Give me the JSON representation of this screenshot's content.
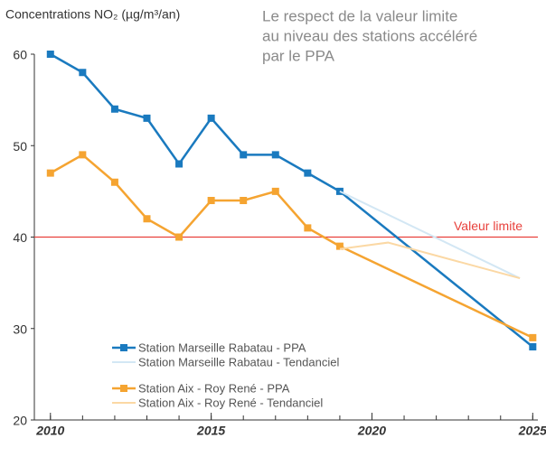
{
  "chart_data": {
    "type": "line",
    "ylabel": "Concentrations NO₂ (µg/m³/an)",
    "annotation": [
      "Le respect de la valeur limite",
      "au niveau des stations accéléré",
      "par le PPA"
    ],
    "xlim": [
      2009.5,
      2025.3
    ],
    "xticks": [
      2010,
      2015,
      2020,
      2025
    ],
    "x_minor_ticks": [
      2010,
      2011,
      2012,
      2013,
      2014,
      2015,
      2016,
      2017,
      2018,
      2019,
      2020,
      2021,
      2022,
      2023,
      2024,
      2025
    ],
    "ylim": [
      20,
      60
    ],
    "yticks": [
      20,
      30,
      40,
      50,
      60
    ],
    "reference_line": {
      "value": 40,
      "label": "Valeur limite",
      "color": "#e8413c"
    },
    "series": [
      {
        "name": "Station Marseille Rabatau - PPA",
        "color": "#1a7abf",
        "markers": true,
        "x": [
          2010,
          2011,
          2012,
          2013,
          2014,
          2015,
          2016,
          2017,
          2018,
          2019,
          2025
        ],
        "values": [
          60,
          58,
          54,
          53,
          48,
          53,
          49,
          49,
          47,
          45,
          28
        ]
      },
      {
        "name": "Station Marseille Rabatau  - Tendanciel",
        "color": "#d3e7f4",
        "markers": false,
        "x": [
          2019,
          2024.6
        ],
        "values": [
          45,
          35.5
        ]
      },
      {
        "name": "Station Aix - Roy René - PPA",
        "color": "#f5a431",
        "markers": true,
        "x": [
          2010,
          2011,
          2012,
          2013,
          2014,
          2015,
          2016,
          2017,
          2018,
          2019,
          2025
        ],
        "values": [
          47,
          49,
          46,
          42,
          40,
          44,
          44,
          45,
          41,
          39,
          29
        ]
      },
      {
        "name": "Station Aix - Roy René - Tendanciel",
        "color": "#fbd8a4",
        "markers": false,
        "x": [
          2019,
          2020.5,
          2024.6
        ],
        "values": [
          38.7,
          39.4,
          35.5
        ]
      }
    ]
  }
}
